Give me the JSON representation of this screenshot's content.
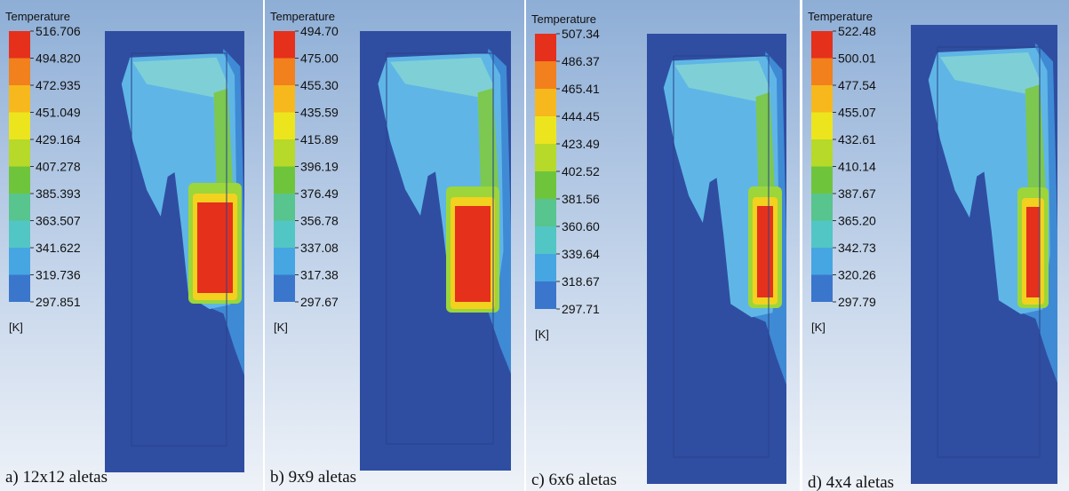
{
  "panels": [
    {
      "legend_title": "Temperature",
      "levels": [
        "516.706",
        "494.820",
        "472.935",
        "451.049",
        "429.164",
        "407.278",
        "385.393",
        "363.507",
        "341.622",
        "319.736",
        "297.851"
      ],
      "unit": "[K]",
      "caption": "a) 12x12 aletas"
    },
    {
      "legend_title": "Temperature",
      "levels": [
        "494.70",
        "475.00",
        "455.30",
        "435.59",
        "415.89",
        "396.19",
        "376.49",
        "356.78",
        "337.08",
        "317.38",
        "297.67"
      ],
      "unit": "[K]",
      "caption": "b) 9x9 aletas"
    },
    {
      "legend_title": "Temperature",
      "levels": [
        "507.34",
        "486.37",
        "465.41",
        "444.45",
        "423.49",
        "402.52",
        "381.56",
        "360.60",
        "339.64",
        "318.67",
        "297.71"
      ],
      "unit": "[K]",
      "caption": "c) 6x6 aletas"
    },
    {
      "legend_title": "Temperature",
      "levels": [
        "522.48",
        "500.01",
        "477.54",
        "455.07",
        "432.61",
        "410.14",
        "387.67",
        "365.20",
        "342.73",
        "320.26",
        "297.79"
      ],
      "unit": "[K]",
      "caption": "d) 4x4 aletas"
    }
  ]
}
